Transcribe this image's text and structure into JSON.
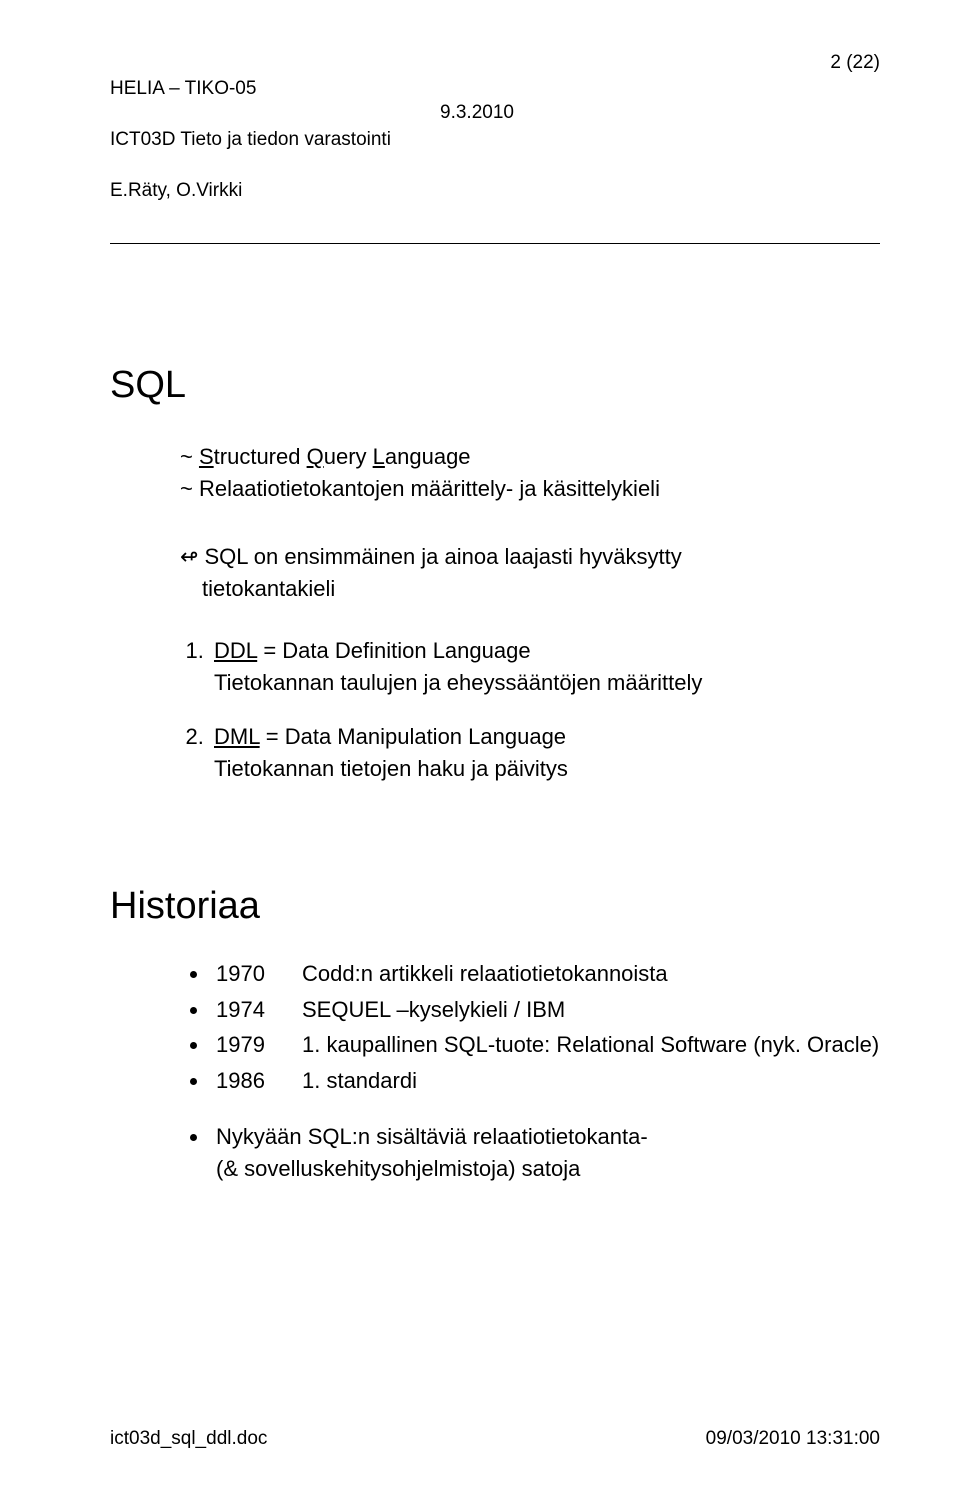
{
  "header": {
    "line1": "HELIA – TIKO-05",
    "line2": "ICT03D Tieto ja tiedon varastointi",
    "line3": "E.Räty, O.Virkki",
    "mid": "9.3.2010",
    "right": "2 (22)"
  },
  "title": "SQL",
  "tilde": {
    "l1a": "~ ",
    "l1_s": "S",
    "l1_mid": "tructured ",
    "l1_q": "Q",
    "l1_mid2": "uery ",
    "l1_l": "L",
    "l1_end": "anguage",
    "l2": "~ Relaatiotietokantojen määrittely- ja käsittelykieli"
  },
  "arrow": {
    "glyph": "↫",
    "l1": "SQL on ensimmäinen ja ainoa laajasti hyväksytty",
    "l2": "tietokantakieli"
  },
  "numlist": [
    {
      "head": "DDL",
      "head_rest": " = Data Definition Language",
      "sub": "Tietokannan taulujen ja eheyssääntöjen määrittely"
    },
    {
      "head": "DML",
      "head_rest": " = Data Manipulation Language",
      "sub": "Tietokannan tietojen haku ja päivitys"
    }
  ],
  "historiaa_title": "Historiaa",
  "bullets": [
    {
      "year": "1970",
      "text": "Codd:n artikkeli relaatiotietokannoista"
    },
    {
      "year": "1974",
      "text": "SEQUEL –kyselykieli / IBM"
    },
    {
      "year": "1979",
      "text": "1. kaupallinen SQL-tuote: Relational Software (nyk. Oracle)"
    },
    {
      "year": "1986",
      "text": "1. standardi"
    }
  ],
  "bullets2": [
    "Nykyään SQL:n sisältäviä relaatiotietokanta-",
    "(& sovelluskehitysohjelmistoja) satoja"
  ],
  "footer": {
    "left": "ict03d_sql_ddl.doc",
    "right": "09/03/2010 13:31:00"
  }
}
